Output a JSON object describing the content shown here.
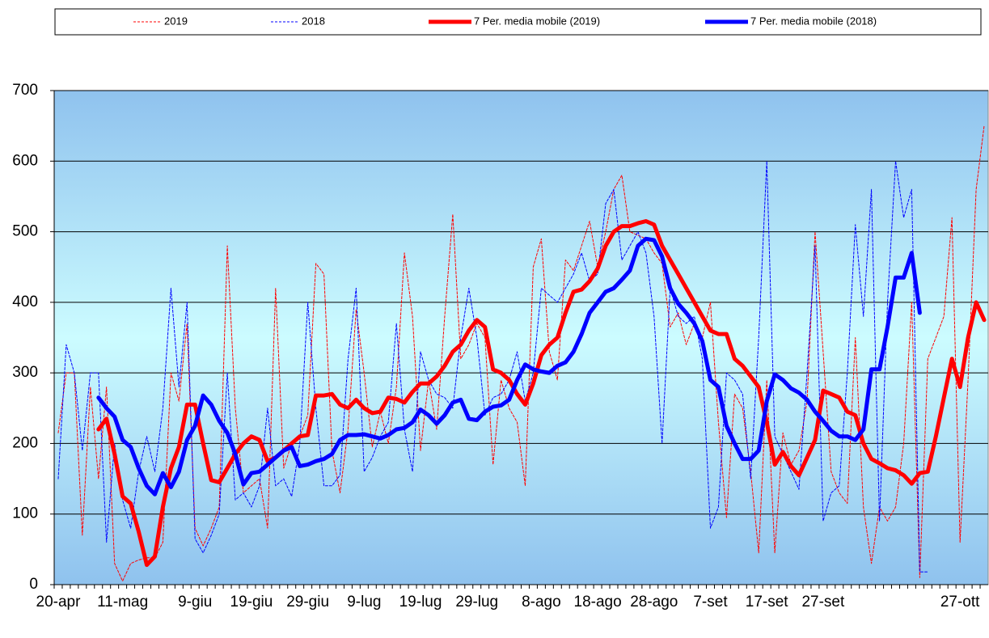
{
  "chart_data": {
    "type": "line",
    "categories": [
      "20-apr",
      null,
      null,
      null,
      null,
      null,
      null,
      null,
      "11-mag",
      null,
      null,
      null,
      null,
      null,
      null,
      null,
      null,
      "9-giu",
      null,
      null,
      null,
      null,
      null,
      null,
      "19-giu",
      null,
      null,
      null,
      null,
      null,
      null,
      "29-giu",
      null,
      null,
      null,
      null,
      null,
      null,
      "9-lug",
      null,
      null,
      null,
      null,
      null,
      null,
      "19-lug",
      null,
      null,
      null,
      null,
      null,
      null,
      "29-lug",
      null,
      null,
      null,
      null,
      null,
      null,
      null,
      "8-ago",
      null,
      null,
      null,
      null,
      null,
      null,
      "18-ago",
      null,
      null,
      null,
      null,
      null,
      null,
      "28-ago",
      null,
      null,
      null,
      null,
      null,
      null,
      "7-set",
      null,
      null,
      null,
      null,
      null,
      null,
      "17-set",
      null,
      null,
      null,
      null,
      null,
      null,
      "27-set",
      null,
      null,
      null,
      null,
      null,
      null,
      null,
      null,
      null,
      null,
      null,
      null,
      null,
      null,
      null,
      null,
      "27-ott",
      null,
      null,
      null
    ],
    "series": [
      {
        "name": "2019",
        "color": "#ff0000",
        "line_style": "dashed",
        "line_width": 1,
        "values": [
          215,
          300,
          300,
          70,
          280,
          150,
          280,
          30,
          5,
          30,
          35,
          38,
          38,
          60,
          300,
          260,
          370,
          80,
          55,
          80,
          110,
          480,
          250,
          130,
          140,
          150,
          80,
          420,
          165,
          200,
          210,
          240,
          455,
          440,
          190,
          130,
          220,
          390,
          300,
          195,
          245,
          200,
          280,
          470,
          380,
          190,
          290,
          220,
          380,
          525,
          320,
          340,
          370,
          350,
          170,
          290,
          250,
          230,
          140,
          450,
          490,
          330,
          290,
          460,
          445,
          480,
          515,
          450,
          500,
          560,
          580,
          500,
          495,
          490,
          470,
          455,
          365,
          385,
          340,
          370,
          350,
          400,
          230,
          95,
          270,
          250,
          160,
          45,
          290,
          45,
          215,
          170,
          190,
          260,
          500,
          330,
          160,
          130,
          115,
          350,
          110,
          30,
          110,
          90,
          110,
          200,
          400,
          10,
          320,
          350,
          380,
          520,
          60,
          290,
          560,
          650
        ]
      },
      {
        "name": "2018",
        "color": "#0000ff",
        "line_style": "dashed",
        "line_width": 1,
        "values": [
          150,
          340,
          300,
          190,
          300,
          300,
          60,
          200,
          120,
          80,
          160,
          210,
          160,
          250,
          420,
          280,
          400,
          65,
          45,
          70,
          100,
          300,
          120,
          130,
          110,
          140,
          250,
          140,
          150,
          125,
          200,
          400,
          250,
          140,
          140,
          155,
          320,
          420,
          160,
          180,
          210,
          230,
          370,
          220,
          160,
          330,
          290,
          270,
          265,
          250,
          350,
          420,
          350,
          240,
          265,
          270,
          290,
          330,
          260,
          300,
          420,
          410,
          400,
          420,
          440,
          470,
          430,
          440,
          540,
          560,
          460,
          480,
          500,
          470,
          380,
          200,
          420,
          380,
          370,
          380,
          320,
          80,
          110,
          300,
          290,
          270,
          150,
          350,
          600,
          210,
          185,
          160,
          135,
          300,
          480,
          90,
          130,
          140,
          300,
          510,
          380,
          560,
          90,
          400,
          600,
          520,
          560,
          18,
          18,
          null,
          null,
          null,
          null,
          null,
          null,
          null
        ]
      },
      {
        "name": "7 Per. media mobile (2019)",
        "color": "#ff0000",
        "line_style": "solid",
        "line_width": 5,
        "values": [
          null,
          null,
          null,
          null,
          null,
          220,
          235,
          185,
          125,
          115,
          75,
          28,
          40,
          110,
          165,
          195,
          255,
          255,
          200,
          148,
          145,
          165,
          185,
          200,
          210,
          205,
          175,
          180,
          190,
          200,
          210,
          212,
          268,
          268,
          270,
          255,
          250,
          262,
          250,
          243,
          245,
          265,
          263,
          258,
          273,
          285,
          285,
          295,
          310,
          330,
          340,
          360,
          375,
          365,
          305,
          300,
          290,
          270,
          255,
          285,
          325,
          340,
          350,
          385,
          415,
          418,
          430,
          448,
          480,
          500,
          508,
          508,
          512,
          515,
          510,
          480,
          460,
          440,
          420,
          400,
          380,
          360,
          355,
          355,
          320,
          310,
          295,
          280,
          230,
          170,
          188,
          168,
          155,
          180,
          205,
          275,
          270,
          265,
          245,
          240,
          200,
          178,
          172,
          165,
          162,
          155,
          143,
          158,
          160,
          210,
          265,
          320,
          280,
          350,
          400,
          375
        ]
      },
      {
        "name": "7 Per. media mobile (2018)",
        "color": "#0000ff",
        "line_style": "solid",
        "line_width": 5,
        "values": [
          null,
          null,
          null,
          null,
          null,
          265,
          250,
          238,
          205,
          195,
          165,
          140,
          128,
          158,
          138,
          160,
          205,
          225,
          268,
          255,
          232,
          215,
          185,
          142,
          158,
          160,
          170,
          180,
          190,
          195,
          168,
          170,
          175,
          178,
          185,
          205,
          212,
          212,
          213,
          210,
          207,
          212,
          220,
          222,
          230,
          248,
          240,
          228,
          240,
          258,
          262,
          235,
          233,
          245,
          252,
          254,
          262,
          290,
          312,
          305,
          302,
          300,
          310,
          315,
          330,
          355,
          385,
          400,
          415,
          420,
          432,
          445,
          480,
          490,
          488,
          465,
          420,
          398,
          385,
          370,
          345,
          290,
          280,
          225,
          200,
          178,
          178,
          190,
          260,
          298,
          290,
          278,
          272,
          262,
          245,
          232,
          218,
          210,
          210,
          205,
          220,
          305,
          305,
          365,
          435,
          435,
          470,
          385,
          null,
          null,
          null,
          null,
          null,
          null,
          null,
          null
        ]
      }
    ],
    "ylim": [
      0,
      700
    ],
    "yticks": [
      0,
      100,
      200,
      300,
      400,
      500,
      600,
      700
    ],
    "grid": true,
    "legend": "top"
  }
}
